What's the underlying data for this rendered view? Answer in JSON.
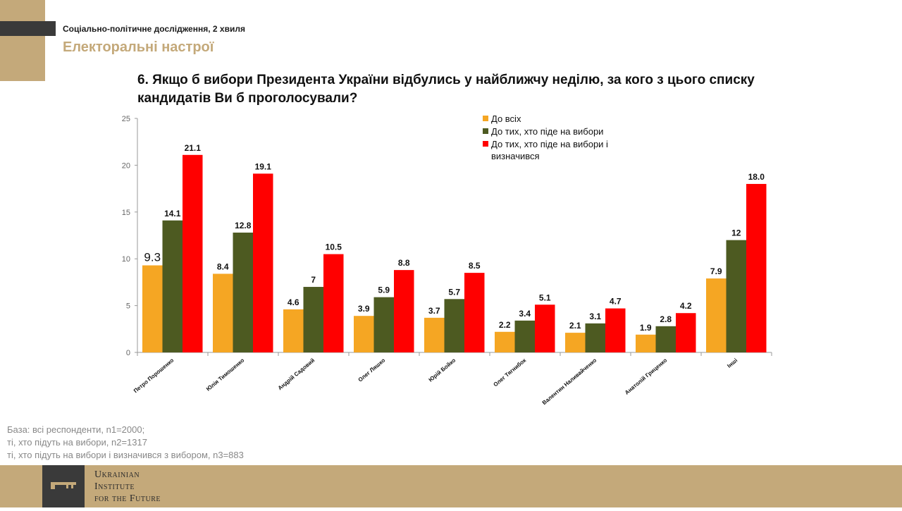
{
  "header": {
    "subtitle": "Соціально-політичне дослідження, 2 хвиля",
    "section_title": "Електоральні настрої",
    "question_line1": "6.   Якщо б вибори Президента України відбулись у найближчу неділю, за кого з цього списку",
    "question_line2": "кандидатів Ви б проголосували?"
  },
  "chart_data": {
    "type": "bar",
    "categories": [
      "Петро Порошенко",
      "Юлія Тимошенко",
      "Андрій Садовий",
      "Олег Ляшко",
      "Юрій Бойко",
      "Олег Тягнибок",
      "Валентин Наливайченко",
      "Анатолій Гриценко",
      "Інші"
    ],
    "series": [
      {
        "name": "До всіх",
        "color": "#f5a623",
        "values": [
          9.3,
          8.4,
          4.6,
          3.9,
          3.7,
          2.2,
          2.1,
          1.9,
          7.9
        ],
        "labels": [
          "9.3",
          "8.4",
          "4.6",
          "3.9",
          "3.7",
          "2.2",
          "2.1",
          "1.9",
          "7.9"
        ]
      },
      {
        "name": "До тих, хто піде на вибори",
        "color": "#4d5a21",
        "values": [
          14.1,
          12.8,
          7,
          5.9,
          5.7,
          3.4,
          3.1,
          2.8,
          12
        ],
        "labels": [
          "14.1",
          "12.8",
          "7",
          "5.9",
          "5.7",
          "3.4",
          "3.1",
          "2.8",
          "12"
        ]
      },
      {
        "name": "До тих, хто піде на вибори і визначився",
        "color": "#ff0000",
        "values": [
          21.1,
          19.1,
          10.5,
          8.8,
          8.5,
          5.1,
          4.7,
          4.2,
          18.0
        ],
        "labels": [
          "21.1",
          "19.1",
          "10.5",
          "8.8",
          "8.5",
          "5.1",
          "4.7",
          "4.2",
          "18.0"
        ]
      }
    ],
    "legend": [
      "До всіх",
      "До тих, хто піде на вибори",
      "До тих, хто піде на вибори і",
      "визначився"
    ],
    "yticks": [
      "0",
      "5",
      "10",
      "15",
      "20",
      "25"
    ],
    "ylim": [
      0,
      25
    ],
    "legend_position": "top-right"
  },
  "footnote": {
    "line1": "База: всі респонденти, n1=2000;",
    "line2": "ті, хто підуть на вибори, n2=1317",
    "line3": "ті, хто підуть на вибори і визначився з вибором, n3=883"
  },
  "logo": {
    "icon": "key-icon",
    "line1": "Ukrainian",
    "line2": "Institute",
    "line3": "for the Future"
  }
}
